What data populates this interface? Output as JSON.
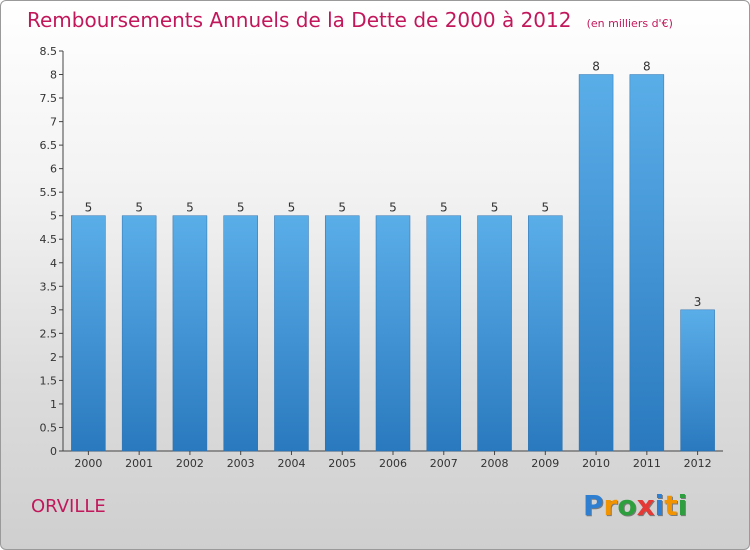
{
  "chart_data": {
    "type": "bar",
    "title": "Remboursements Annuels de la Dette de 2000 à 2012",
    "subtitle": "(en milliers d'€)",
    "categories": [
      "2000",
      "2001",
      "2002",
      "2003",
      "2004",
      "2005",
      "2006",
      "2007",
      "2008",
      "2009",
      "2010",
      "2011",
      "2012"
    ],
    "values": [
      5,
      5,
      5,
      5,
      5,
      5,
      5,
      5,
      5,
      5,
      8,
      8,
      3
    ],
    "ylim": [
      0,
      8.5
    ],
    "yticks": [
      0,
      0.5,
      1,
      1.5,
      2,
      2.5,
      3,
      3.5,
      4,
      4.5,
      5,
      5.5,
      6,
      6.5,
      7,
      7.5,
      8,
      8.5
    ],
    "grid": false,
    "bar_color": "#3d94d8"
  },
  "location": "ORVILLE",
  "logo": {
    "letters": [
      "P",
      "r",
      "o",
      "x",
      "i",
      "t",
      "i"
    ],
    "colors": [
      "#2e7fd1",
      "#f29400",
      "#2e9f3e",
      "#e53935",
      "#2e7fd1",
      "#f29400",
      "#2e9f3e"
    ]
  },
  "theme": {
    "accent": "#c2185b"
  }
}
